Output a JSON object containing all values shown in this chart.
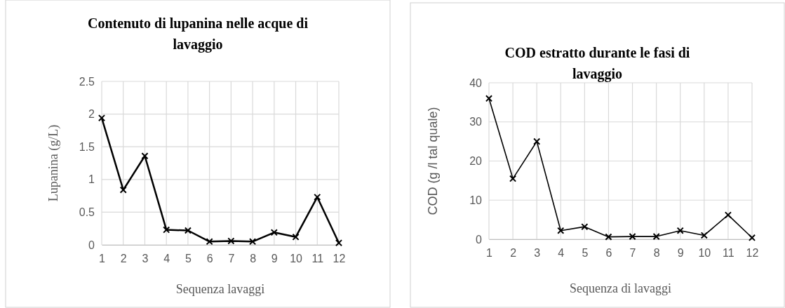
{
  "chart_data": [
    {
      "type": "line",
      "title": "Contenuto di lupanina nelle acque di lavaggio",
      "xlabel": "Sequenza lavaggi",
      "ylabel": "Lupanina (g/L)",
      "x": [
        1,
        2,
        3,
        4,
        5,
        6,
        7,
        8,
        9,
        10,
        11,
        12
      ],
      "series": [
        {
          "color": "#000000",
          "values": [
            1.94,
            0.84,
            1.36,
            0.23,
            0.22,
            0.05,
            0.06,
            0.05,
            0.19,
            0.12,
            0.73,
            0.03
          ]
        }
      ],
      "xlim": [
        1,
        12
      ],
      "xticks": [
        1,
        2,
        3,
        4,
        5,
        6,
        7,
        8,
        9,
        10,
        11,
        12
      ],
      "ylim": [
        0,
        2.5
      ],
      "yticks": [
        0,
        0.5,
        1,
        1.5,
        2,
        2.5
      ],
      "grid": true,
      "marker": "cross",
      "line_style": "solid"
    },
    {
      "type": "line",
      "title": "COD estratto durante le fasi di lavaggio",
      "xlabel": "Sequenza di lavaggi",
      "ylabel": "COD (g /l tal quale)",
      "x": [
        1,
        2,
        3,
        4,
        5,
        6,
        7,
        8,
        9,
        10,
        11,
        12
      ],
      "series": [
        {
          "color": "#000000",
          "values": [
            36,
            15.5,
            25,
            2.2,
            3.2,
            0.6,
            0.7,
            0.7,
            2.2,
            1,
            6.2,
            0.4
          ]
        }
      ],
      "xlim": [
        1,
        12
      ],
      "xticks": [
        1,
        2,
        3,
        4,
        5,
        6,
        7,
        8,
        9,
        10,
        11,
        12
      ],
      "ylim": [
        0,
        40
      ],
      "yticks": [
        0,
        10,
        20,
        30,
        40
      ],
      "grid": true,
      "marker": "cross",
      "line_style": "solid"
    }
  ]
}
